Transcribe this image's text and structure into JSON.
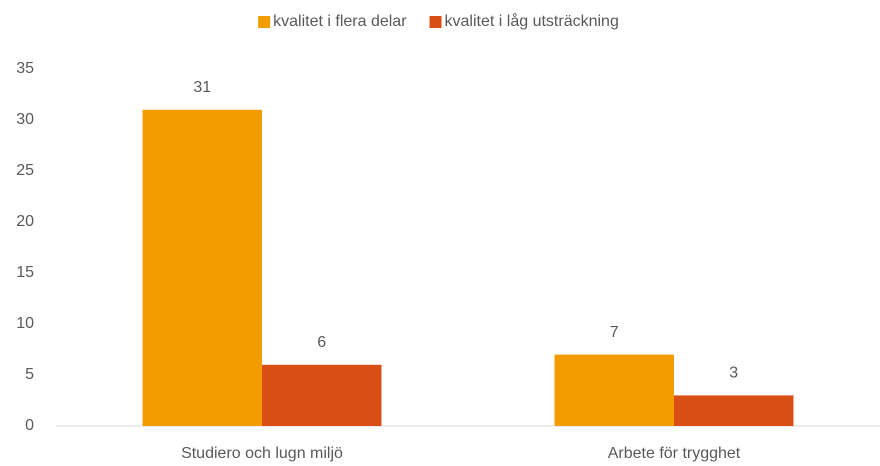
{
  "chart_data": {
    "type": "bar",
    "categories": [
      "Studiero och lugn miljö",
      "Arbete för trygghet"
    ],
    "series": [
      {
        "name": "kvalitet i flera delar",
        "color": "#F29C00",
        "values": [
          31,
          7
        ]
      },
      {
        "name": "kvalitet i låg utsträckning",
        "color": "#DA4F16",
        "values": [
          6,
          3
        ]
      }
    ],
    "ylim": [
      0,
      35
    ],
    "yticks": [
      0,
      5,
      10,
      15,
      20,
      25,
      30,
      35
    ],
    "grid": false,
    "legend": "top",
    "data_labels": true
  }
}
